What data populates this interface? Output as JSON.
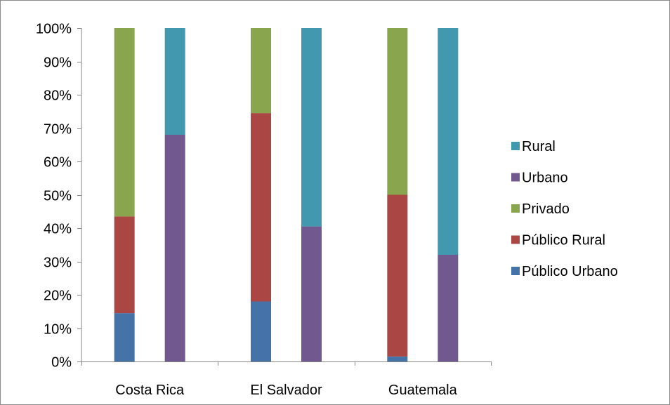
{
  "chart_data": {
    "type": "bar",
    "stacked": true,
    "normalized_percent": true,
    "categories": [
      "Costa Rica",
      "El Salvador",
      "Guatemala"
    ],
    "y_ticks": [
      "0%",
      "10%",
      "20%",
      "30%",
      "40%",
      "50%",
      "60%",
      "70%",
      "80%",
      "90%",
      "100%"
    ],
    "ylim": [
      0,
      100
    ],
    "grid": false,
    "legend_position": "right",
    "legend_order": [
      "Rural",
      "Urbano",
      "Privado",
      "Público Rural",
      "Público Urbano"
    ],
    "stacks": [
      {
        "name": "stack-1",
        "series": [
          {
            "name": "Público Urbano",
            "color": "#4572A7",
            "values": [
              14.5,
              18,
              1.5
            ]
          },
          {
            "name": "Público Rural",
            "color": "#AA4643",
            "values": [
              29,
              56.5,
              48.5
            ]
          },
          {
            "name": "Privado",
            "color": "#89A54E",
            "values": [
              56.5,
              25.5,
              50
            ]
          }
        ]
      },
      {
        "name": "stack-2",
        "series": [
          {
            "name": "Urbano",
            "color": "#71588F",
            "values": [
              68,
              40.5,
              32
            ]
          },
          {
            "name": "Rural",
            "color": "#4198AF",
            "values": [
              32,
              59.5,
              68
            ]
          }
        ]
      }
    ]
  }
}
